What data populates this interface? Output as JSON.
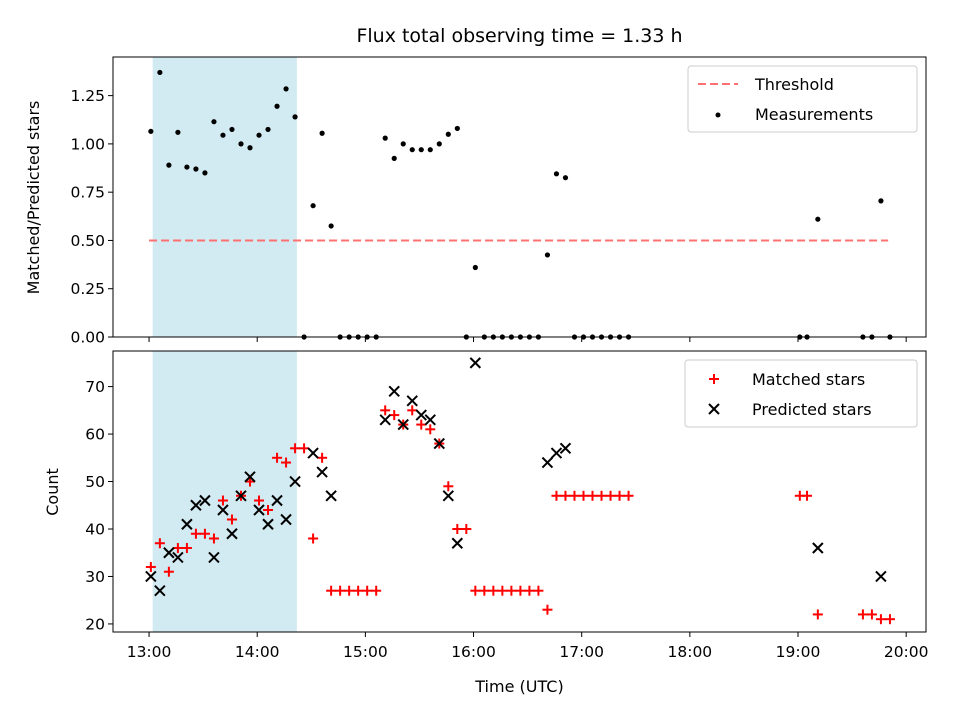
{
  "chart_data": {
    "type": "scatter",
    "title": "Flux total observing time = 1.33 h",
    "xlabel": "Time (UTC)",
    "x_ticks": [
      "13:00",
      "14:00",
      "15:00",
      "16:00",
      "17:00",
      "18:00",
      "19:00",
      "20:00"
    ],
    "xlim": [
      "12:40",
      "20:11"
    ],
    "shaded_interval": [
      "13:02",
      "14:22"
    ],
    "shade_color": "#add8e6",
    "panels": [
      {
        "ylabel": "Matched/Predicted stars",
        "ylim": [
          0,
          1.45
        ],
        "y_ticks": [
          "0.00",
          "0.25",
          "0.50",
          "0.75",
          "1.00",
          "1.25"
        ],
        "threshold": {
          "name": "Threshold",
          "value": 0.5,
          "x_range": [
            "13:00",
            "19:50"
          ],
          "color": "#ff7070"
        },
        "series": [
          {
            "name": "Measurements",
            "marker": "dot",
            "color": "#000000",
            "points": [
              [
                "13:01",
                1.065
              ],
              [
                "13:06",
                1.37
              ],
              [
                "13:11",
                0.89
              ],
              [
                "13:16",
                1.06
              ],
              [
                "13:21",
                0.88
              ],
              [
                "13:26",
                0.87
              ],
              [
                "13:31",
                0.85
              ],
              [
                "13:36",
                1.115
              ],
              [
                "13:41",
                1.045
              ],
              [
                "13:46",
                1.075
              ],
              [
                "13:51",
                1.0
              ],
              [
                "13:56",
                0.98
              ],
              [
                "14:01",
                1.045
              ],
              [
                "14:06",
                1.075
              ],
              [
                "14:11",
                1.195
              ],
              [
                "14:16",
                1.285
              ],
              [
                "14:21",
                1.14
              ],
              [
                "14:26",
                0.0
              ],
              [
                "14:31",
                0.68
              ],
              [
                "14:36",
                1.055
              ],
              [
                "14:41",
                0.575
              ],
              [
                "14:46",
                0.0
              ],
              [
                "14:51",
                0.0
              ],
              [
                "14:56",
                0.0
              ],
              [
                "15:01",
                0.0
              ],
              [
                "15:06",
                0.0
              ],
              [
                "15:11",
                1.03
              ],
              [
                "15:16",
                0.925
              ],
              [
                "15:21",
                1.0
              ],
              [
                "15:26",
                0.97
              ],
              [
                "15:31",
                0.97
              ],
              [
                "15:36",
                0.97
              ],
              [
                "15:41",
                1.0
              ],
              [
                "15:46",
                1.05
              ],
              [
                "15:51",
                1.08
              ],
              [
                "15:56",
                0.0
              ],
              [
                "16:01",
                0.36
              ],
              [
                "16:06",
                0.0
              ],
              [
                "16:11",
                0.0
              ],
              [
                "16:16",
                0.0
              ],
              [
                "16:21",
                0.0
              ],
              [
                "16:26",
                0.0
              ],
              [
                "16:31",
                0.0
              ],
              [
                "16:36",
                0.0
              ],
              [
                "16:41",
                0.425
              ],
              [
                "16:46",
                0.845
              ],
              [
                "16:51",
                0.825
              ],
              [
                "16:56",
                0.0
              ],
              [
                "17:01",
                0.0
              ],
              [
                "17:06",
                0.0
              ],
              [
                "17:11",
                0.0
              ],
              [
                "17:16",
                0.0
              ],
              [
                "17:21",
                0.0
              ],
              [
                "17:26",
                0.0
              ],
              [
                "19:01",
                0.0
              ],
              [
                "19:05",
                0.0
              ],
              [
                "19:11",
                0.61
              ],
              [
                "19:36",
                0.0
              ],
              [
                "19:41",
                0.0
              ],
              [
                "19:46",
                0.705
              ],
              [
                "19:51",
                0.0
              ]
            ]
          }
        ],
        "legend": {
          "position": "upper right",
          "entries": [
            "Threshold",
            "Measurements"
          ]
        }
      },
      {
        "ylabel": "Count",
        "ylim": [
          18.3,
          77.5
        ],
        "y_ticks": [
          "20",
          "30",
          "40",
          "50",
          "60",
          "70"
        ],
        "series": [
          {
            "name": "Matched stars",
            "marker": "plus",
            "color": "#ff0000",
            "points": [
              [
                "13:01",
                32
              ],
              [
                "13:06",
                37
              ],
              [
                "13:11",
                31
              ],
              [
                "13:16",
                36
              ],
              [
                "13:21",
                36
              ],
              [
                "13:26",
                39
              ],
              [
                "13:31",
                39
              ],
              [
                "13:36",
                38
              ],
              [
                "13:41",
                46
              ],
              [
                "13:46",
                42
              ],
              [
                "13:51",
                47
              ],
              [
                "13:56",
                50
              ],
              [
                "14:01",
                46
              ],
              [
                "14:06",
                44
              ],
              [
                "14:11",
                55
              ],
              [
                "14:16",
                54
              ],
              [
                "14:21",
                57
              ],
              [
                "14:26",
                57
              ],
              [
                "14:31",
                38
              ],
              [
                "14:36",
                55
              ],
              [
                "14:41",
                27
              ],
              [
                "14:46",
                27
              ],
              [
                "14:51",
                27
              ],
              [
                "14:56",
                27
              ],
              [
                "15:01",
                27
              ],
              [
                "15:06",
                27
              ],
              [
                "15:11",
                65
              ],
              [
                "15:16",
                64
              ],
              [
                "15:21",
                62
              ],
              [
                "15:26",
                65
              ],
              [
                "15:31",
                62
              ],
              [
                "15:36",
                61
              ],
              [
                "15:41",
                58
              ],
              [
                "15:46",
                49
              ],
              [
                "15:51",
                40
              ],
              [
                "15:56",
                40
              ],
              [
                "16:01",
                27
              ],
              [
                "16:06",
                27
              ],
              [
                "16:11",
                27
              ],
              [
                "16:16",
                27
              ],
              [
                "16:21",
                27
              ],
              [
                "16:26",
                27
              ],
              [
                "16:31",
                27
              ],
              [
                "16:36",
                27
              ],
              [
                "16:41",
                23
              ],
              [
                "16:46",
                47
              ],
              [
                "16:51",
                47
              ],
              [
                "16:56",
                47
              ],
              [
                "17:01",
                47
              ],
              [
                "17:06",
                47
              ],
              [
                "17:11",
                47
              ],
              [
                "17:16",
                47
              ],
              [
                "17:21",
                47
              ],
              [
                "17:26",
                47
              ],
              [
                "19:01",
                47
              ],
              [
                "19:05",
                47
              ],
              [
                "19:11",
                22
              ],
              [
                "19:36",
                22
              ],
              [
                "19:41",
                22
              ],
              [
                "19:46",
                21
              ],
              [
                "19:51",
                21
              ]
            ]
          },
          {
            "name": "Predicted stars",
            "marker": "x",
            "color": "#000000",
            "points": [
              [
                "13:01",
                30
              ],
              [
                "13:06",
                27
              ],
              [
                "13:11",
                35
              ],
              [
                "13:16",
                34
              ],
              [
                "13:21",
                41
              ],
              [
                "13:26",
                45
              ],
              [
                "13:31",
                46
              ],
              [
                "13:36",
                34
              ],
              [
                "13:41",
                44
              ],
              [
                "13:46",
                39
              ],
              [
                "13:51",
                47
              ],
              [
                "13:56",
                51
              ],
              [
                "14:01",
                44
              ],
              [
                "14:06",
                41
              ],
              [
                "14:11",
                46
              ],
              [
                "14:16",
                42
              ],
              [
                "14:21",
                50
              ],
              [
                "14:31",
                56
              ],
              [
                "14:36",
                52
              ],
              [
                "14:41",
                47
              ],
              [
                "15:11",
                63
              ],
              [
                "15:16",
                69
              ],
              [
                "15:21",
                62
              ],
              [
                "15:26",
                67
              ],
              [
                "15:31",
                64
              ],
              [
                "15:36",
                63
              ],
              [
                "15:41",
                58
              ],
              [
                "15:46",
                47
              ],
              [
                "15:51",
                37
              ],
              [
                "16:01",
                75
              ],
              [
                "16:41",
                54
              ],
              [
                "16:46",
                56
              ],
              [
                "16:51",
                57
              ],
              [
                "19:11",
                36
              ],
              [
                "19:46",
                30
              ]
            ]
          }
        ],
        "legend": {
          "position": "upper right",
          "entries": [
            "Matched stars",
            "Predicted stars"
          ]
        }
      }
    ]
  }
}
